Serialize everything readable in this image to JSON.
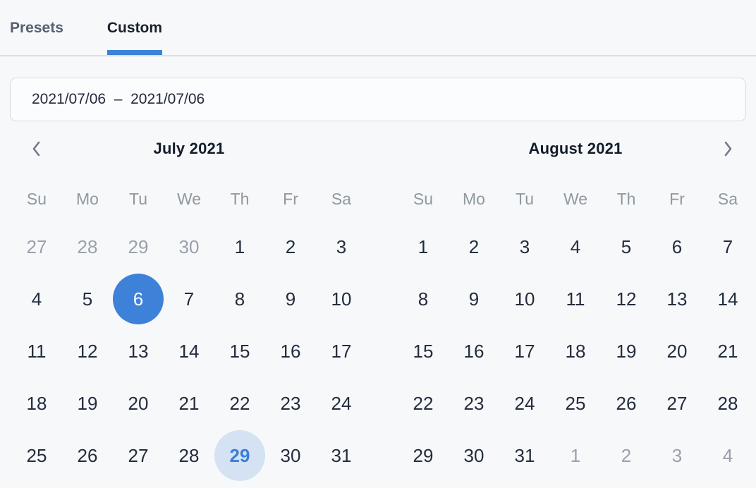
{
  "tabs": [
    {
      "label": "Presets",
      "active": false
    },
    {
      "label": "Custom",
      "active": true
    }
  ],
  "daterange": {
    "value": "2021/07/06  –  2021/07/06",
    "start": "2021/07/06",
    "end": "2021/07/06"
  },
  "weekdays": [
    "Su",
    "Mo",
    "Tu",
    "We",
    "Th",
    "Fr",
    "Sa"
  ],
  "months": [
    {
      "title": "July 2021",
      "nav": "prev",
      "weeks": [
        [
          {
            "d": 27,
            "s": "out"
          },
          {
            "d": 28,
            "s": "out"
          },
          {
            "d": 29,
            "s": "out"
          },
          {
            "d": 30,
            "s": "out"
          },
          {
            "d": 1
          },
          {
            "d": 2
          },
          {
            "d": 3
          }
        ],
        [
          {
            "d": 4
          },
          {
            "d": 5
          },
          {
            "d": 6,
            "s": "sel"
          },
          {
            "d": 7
          },
          {
            "d": 8
          },
          {
            "d": 9
          },
          {
            "d": 10
          }
        ],
        [
          {
            "d": 11
          },
          {
            "d": 12
          },
          {
            "d": 13
          },
          {
            "d": 14
          },
          {
            "d": 15
          },
          {
            "d": 16
          },
          {
            "d": 17
          }
        ],
        [
          {
            "d": 18
          },
          {
            "d": 19
          },
          {
            "d": 20
          },
          {
            "d": 21
          },
          {
            "d": 22
          },
          {
            "d": 23
          },
          {
            "d": 24
          }
        ],
        [
          {
            "d": 25
          },
          {
            "d": 26
          },
          {
            "d": 27
          },
          {
            "d": 28
          },
          {
            "d": 29,
            "s": "today"
          },
          {
            "d": 30
          },
          {
            "d": 31
          }
        ]
      ]
    },
    {
      "title": "August 2021",
      "nav": "next",
      "weeks": [
        [
          {
            "d": 1
          },
          {
            "d": 2
          },
          {
            "d": 3
          },
          {
            "d": 4
          },
          {
            "d": 5
          },
          {
            "d": 6
          },
          {
            "d": 7
          }
        ],
        [
          {
            "d": 8
          },
          {
            "d": 9
          },
          {
            "d": 10
          },
          {
            "d": 11
          },
          {
            "d": 12
          },
          {
            "d": 13
          },
          {
            "d": 14
          }
        ],
        [
          {
            "d": 15
          },
          {
            "d": 16
          },
          {
            "d": 17
          },
          {
            "d": 18
          },
          {
            "d": 19
          },
          {
            "d": 20
          },
          {
            "d": 21
          }
        ],
        [
          {
            "d": 22
          },
          {
            "d": 23
          },
          {
            "d": 24
          },
          {
            "d": 25
          },
          {
            "d": 26
          },
          {
            "d": 27
          },
          {
            "d": 28
          }
        ],
        [
          {
            "d": 29
          },
          {
            "d": 30
          },
          {
            "d": 31
          },
          {
            "d": 1,
            "s": "out"
          },
          {
            "d": 2,
            "s": "out"
          },
          {
            "d": 3,
            "s": "out"
          },
          {
            "d": 4,
            "s": "out"
          }
        ]
      ]
    }
  ],
  "colors": {
    "accent": "#3c82d9",
    "selected_bg": "#3d81d8",
    "selected_text": "#ffffff",
    "today_bg": "#d4e2f4",
    "today_text": "#3b7ed7",
    "day_text": "#232d3d",
    "outside_day_text": "#99a1ab",
    "weekday_text": "#8f999f",
    "inactive_tab_text": "#57606f",
    "page_bg": "#f7f8fa"
  }
}
